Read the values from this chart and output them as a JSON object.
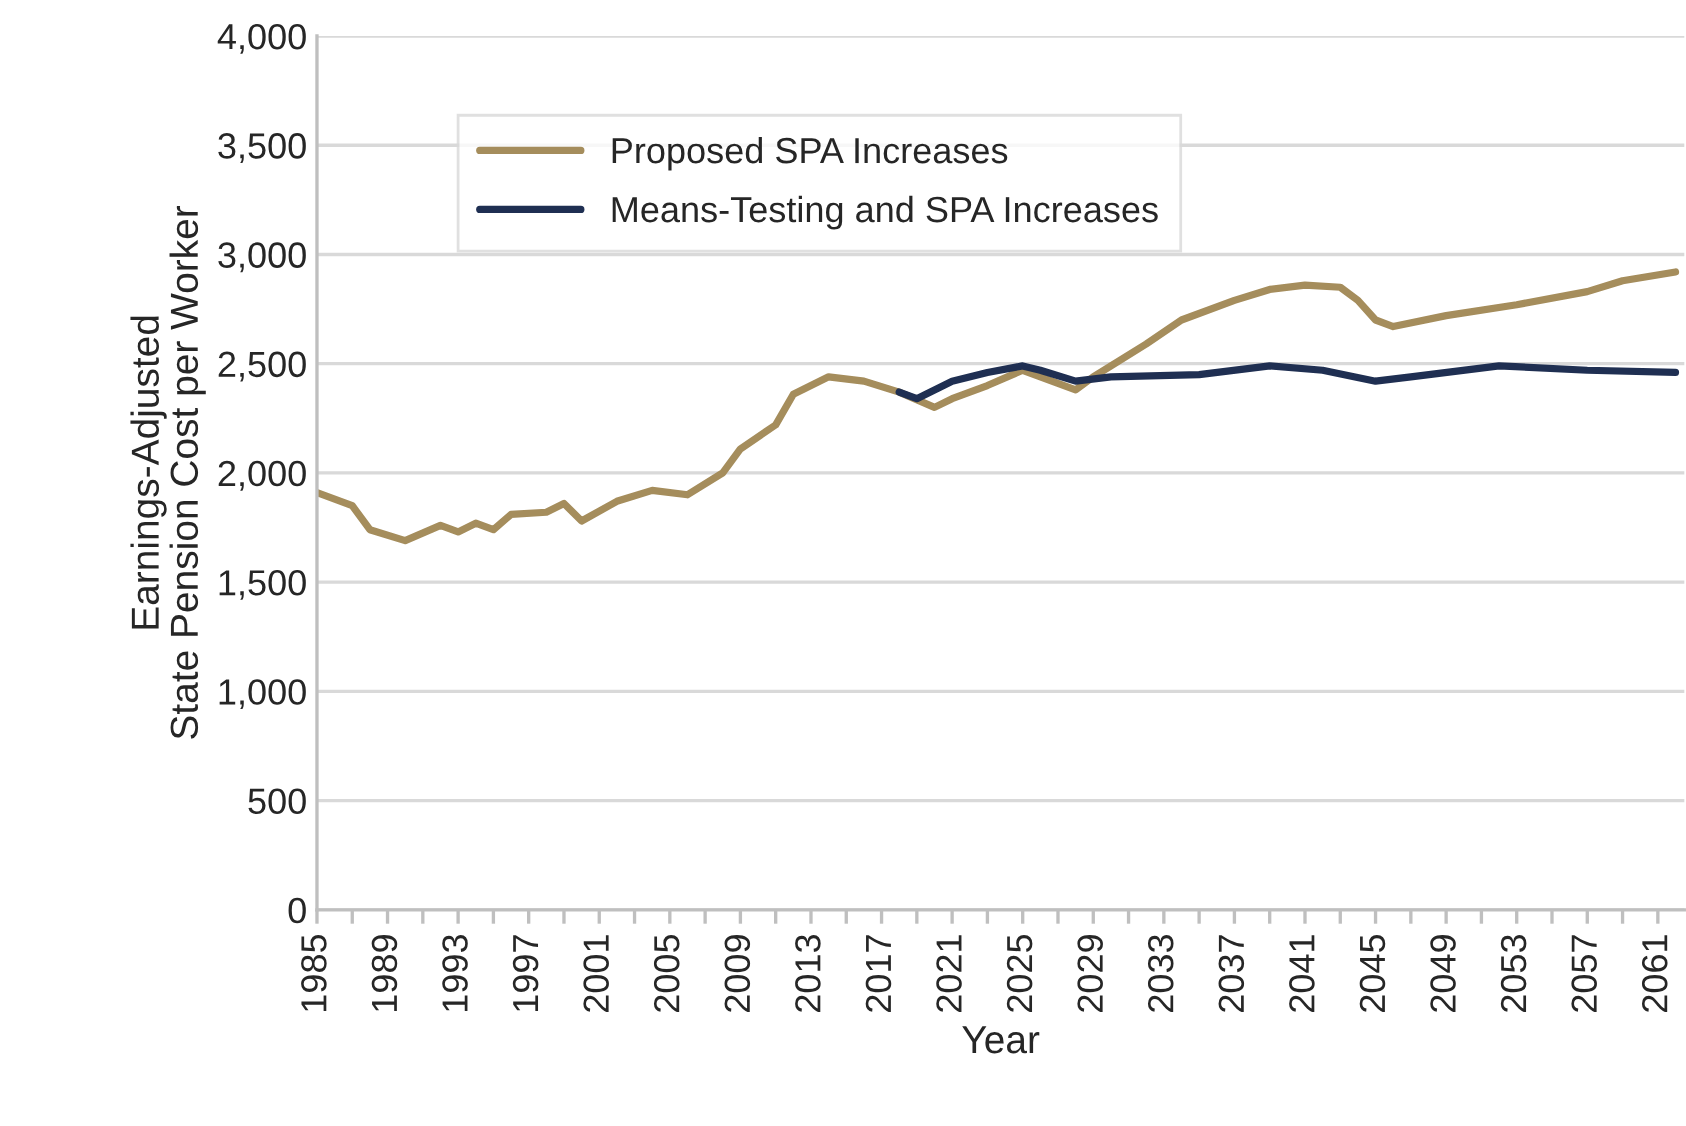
{
  "chart_data": {
    "type": "line",
    "xlabel": "Year",
    "ylabel": "Earnings-Adjusted\nState Pension Cost per Worker",
    "series": [
      {
        "name": "Proposed SPA Increases",
        "color": "#a58d5c",
        "x": [
          1985,
          1987,
          1988,
          1990,
          1992,
          1993,
          1994,
          1995,
          1996,
          1998,
          1999,
          2000,
          2002,
          2004,
          2006,
          2008,
          2009,
          2011,
          2012,
          2014,
          2016,
          2018,
          2020,
          2021,
          2023,
          2025,
          2026,
          2028,
          2029,
          2032,
          2034,
          2037,
          2039,
          2041,
          2043,
          2044,
          2045,
          2046,
          2049,
          2053,
          2057,
          2059,
          2062
        ],
        "values": [
          1910,
          1850,
          1740,
          1690,
          1760,
          1730,
          1770,
          1740,
          1810,
          1820,
          1860,
          1780,
          1870,
          1920,
          1900,
          2000,
          2110,
          2220,
          2360,
          2440,
          2420,
          2370,
          2300,
          2340,
          2400,
          2470,
          2440,
          2380,
          2440,
          2590,
          2700,
          2790,
          2840,
          2860,
          2850,
          2790,
          2700,
          2670,
          2720,
          2770,
          2830,
          2880,
          2920
        ]
      },
      {
        "name": "Means-Testing and SPA Increases",
        "color": "#1f2f52",
        "x": [
          2018,
          2019,
          2021,
          2023,
          2025,
          2026,
          2028,
          2030,
          2035,
          2039,
          2042,
          2045,
          2047,
          2052,
          2057,
          2062
        ],
        "values": [
          2370,
          2340,
          2420,
          2460,
          2490,
          2470,
          2420,
          2440,
          2450,
          2490,
          2470,
          2420,
          2440,
          2490,
          2470,
          2460
        ]
      }
    ],
    "xlim": [
      1985,
      2062.5
    ],
    "xticks": [
      1985,
      {
        "value": 1987,
        "label": null
      },
      1989,
      {
        "value": 1991,
        "label": null
      },
      1993,
      {
        "value": 1995,
        "label": null
      },
      1997,
      {
        "value": 1999,
        "label": null
      },
      2001,
      {
        "value": 2003,
        "label": null
      },
      2005,
      {
        "value": 2007,
        "label": null
      },
      2009,
      {
        "value": 2011,
        "label": null
      },
      2013,
      {
        "value": 2015,
        "label": null
      },
      2017,
      {
        "value": 2019,
        "label": null
      },
      2021,
      {
        "value": 2023,
        "label": null
      },
      2025,
      {
        "value": 2027,
        "label": null
      },
      2029,
      {
        "value": 2031,
        "label": null
      },
      2033,
      {
        "value": 2035,
        "label": null
      },
      2037,
      {
        "value": 2039,
        "label": null
      },
      2041,
      {
        "value": 2043,
        "label": null
      },
      2045,
      {
        "value": 2047,
        "label": null
      },
      2049,
      {
        "value": 2051,
        "label": null
      },
      2053,
      {
        "value": 2055,
        "label": null
      },
      2057,
      {
        "value": 2059,
        "label": null
      },
      2061
    ],
    "ylim": [
      0,
      4000
    ],
    "yticks": [
      0,
      500,
      {
        "value": 1000,
        "label": "1,000"
      },
      {
        "value": 1500,
        "label": "1,500"
      },
      {
        "value": 2000,
        "label": "2,000"
      },
      {
        "value": 2500,
        "label": "2,500"
      },
      {
        "value": 3000,
        "label": "3,000"
      },
      {
        "value": 3500,
        "label": "3,500"
      },
      {
        "value": 4000,
        "label": "4,000"
      }
    ],
    "grid": "y",
    "legend": "top left",
    "line_style": "solid",
    "marker": "none"
  }
}
